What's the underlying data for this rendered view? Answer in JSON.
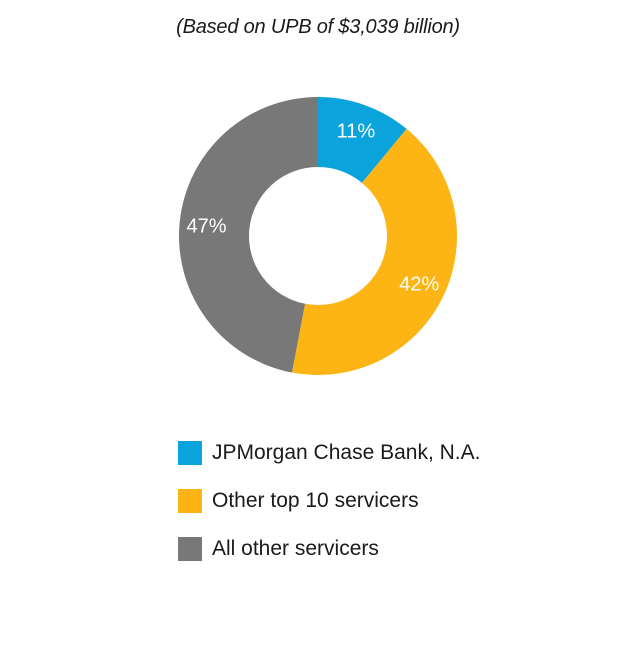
{
  "subtitle": "(Based on UPB of $3,039 billion)",
  "chart_data": {
    "type": "pie",
    "variant": "donut",
    "title": "",
    "subtitle": "(Based on UPB of $3,039 billion)",
    "categories": [
      "JPMorgan Chase Bank, N.A.",
      "Other top 10 servicers",
      "All other servicers"
    ],
    "values": [
      11,
      42,
      47
    ],
    "labels": [
      "11%",
      "42%",
      "47%"
    ],
    "colors": [
      "#0aa3dc",
      "#fdb515",
      "#787878"
    ],
    "legend_position": "bottom"
  },
  "colors": {
    "label_text": "#ffffff",
    "text": "#1a1a1a"
  }
}
